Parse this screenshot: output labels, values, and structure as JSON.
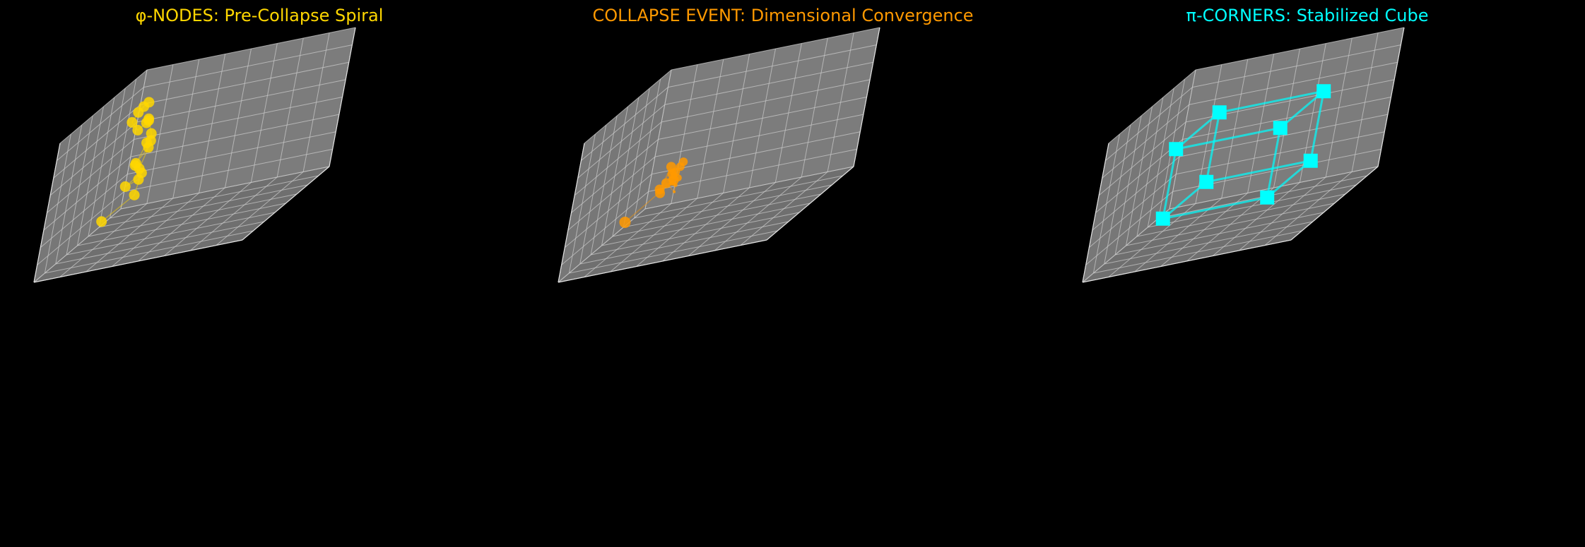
{
  "chart_data": [
    {
      "type": "scatter",
      "projection": "3d",
      "title": "φ-NODES: Pre-Collapse Spiral",
      "color": "#FFD700",
      "background": "#000000",
      "pane_color": "#777777",
      "grid": true,
      "tick_labels": false,
      "lines_connected": true,
      "marker": "circle",
      "points": [
        {
          "x": 0.3,
          "y": 0.85,
          "z": 0.88
        },
        {
          "x": 0.36,
          "y": 0.85,
          "z": 0.88
        },
        {
          "x": 0.42,
          "y": 0.85,
          "z": 0.87
        },
        {
          "x": 0.48,
          "y": 0.85,
          "z": 0.83
        },
        {
          "x": 0.52,
          "y": 0.8,
          "z": 0.78
        },
        {
          "x": 0.42,
          "y": 0.8,
          "z": 0.78
        },
        {
          "x": 0.34,
          "y": 0.82,
          "z": 0.76
        },
        {
          "x": 0.26,
          "y": 0.85,
          "z": 0.74
        },
        {
          "x": 0.27,
          "y": 0.82,
          "z": 0.63
        },
        {
          "x": 0.37,
          "y": 0.78,
          "z": 0.62
        },
        {
          "x": 0.42,
          "y": 0.78,
          "z": 0.63
        },
        {
          "x": 0.52,
          "y": 0.78,
          "z": 0.52
        },
        {
          "x": 0.46,
          "y": 0.8,
          "z": 0.51
        },
        {
          "x": 0.22,
          "y": 0.84,
          "z": 0.51
        },
        {
          "x": 0.4,
          "y": 0.8,
          "z": 0.44
        },
        {
          "x": 0.52,
          "y": 0.75,
          "z": 0.41
        },
        {
          "x": 0.6,
          "y": 0.78,
          "z": 0.41
        },
        {
          "x": 0.22,
          "y": 0.85,
          "z": 0.33
        },
        {
          "x": 0.4,
          "y": 0.8,
          "z": 0.25
        },
        {
          "x": 0.78,
          "y": 0.8,
          "z": 0.26
        }
      ]
    },
    {
      "type": "scatter",
      "projection": "3d",
      "title": "COLLAPSE EVENT: Dimensional Convergence",
      "color": "#FF9900",
      "background": "#000000",
      "pane_color": "#777777",
      "grid": true,
      "tick_labels": false,
      "lines_connected": true,
      "marker": "circle",
      "points": [
        {
          "x": 0.42,
          "y": 0.7,
          "z": 0.47,
          "s": 6
        },
        {
          "x": 0.45,
          "y": 0.7,
          "z": 0.45,
          "s": 6
        },
        {
          "x": 0.5,
          "y": 0.7,
          "z": 0.44,
          "s": 6
        },
        {
          "x": 0.55,
          "y": 0.7,
          "z": 0.45,
          "s": 6
        },
        {
          "x": 0.46,
          "y": 0.72,
          "z": 0.4,
          "s": 5
        },
        {
          "x": 0.48,
          "y": 0.72,
          "z": 0.38,
          "s": 5
        },
        {
          "x": 0.4,
          "y": 0.75,
          "z": 0.4,
          "s": 5
        },
        {
          "x": 0.45,
          "y": 0.7,
          "z": 0.37,
          "s": 5
        },
        {
          "x": 0.52,
          "y": 0.7,
          "z": 0.37,
          "s": 4
        },
        {
          "x": 0.47,
          "y": 0.7,
          "z": 0.33,
          "s": 3
        },
        {
          "x": 0.47,
          "y": 0.7,
          "z": 0.28,
          "s": 2
        },
        {
          "x": 0.6,
          "y": 0.7,
          "z": 0.41,
          "s": 7
        },
        {
          "x": 0.66,
          "y": 0.7,
          "z": 0.37,
          "s": 7
        },
        {
          "x": 0.3,
          "y": 0.8,
          "z": 0.4,
          "s": 7
        },
        {
          "x": 0.4,
          "y": 0.8,
          "z": 0.29,
          "s": 7
        },
        {
          "x": 0.45,
          "y": 0.72,
          "z": 0.36,
          "s": 7
        },
        {
          "x": 0.79,
          "y": 0.8,
          "z": 0.26,
          "s": 8
        }
      ]
    },
    {
      "type": "scatter",
      "projection": "3d",
      "title": "π-CORNERS: Stabilized Cube",
      "color": "#00FFFF",
      "background": "#000000",
      "pane_color": "#777777",
      "grid": true,
      "tick_labels": false,
      "lines_connected": true,
      "marker": "square",
      "points": [
        {
          "x": 0.25,
          "y": 0.25,
          "z": 0.25
        },
        {
          "x": 0.75,
          "y": 0.25,
          "z": 0.25
        },
        {
          "x": 0.75,
          "y": 0.75,
          "z": 0.25
        },
        {
          "x": 0.25,
          "y": 0.75,
          "z": 0.25
        },
        {
          "x": 0.25,
          "y": 0.25,
          "z": 0.75
        },
        {
          "x": 0.75,
          "y": 0.25,
          "z": 0.75
        },
        {
          "x": 0.75,
          "y": 0.75,
          "z": 0.75
        },
        {
          "x": 0.25,
          "y": 0.75,
          "z": 0.75
        }
      ],
      "edges": [
        [
          0,
          1
        ],
        [
          1,
          2
        ],
        [
          2,
          3
        ],
        [
          3,
          0
        ],
        [
          4,
          5
        ],
        [
          5,
          6
        ],
        [
          6,
          7
        ],
        [
          7,
          4
        ],
        [
          0,
          4
        ],
        [
          1,
          5
        ],
        [
          2,
          6
        ],
        [
          3,
          7
        ]
      ]
    }
  ]
}
